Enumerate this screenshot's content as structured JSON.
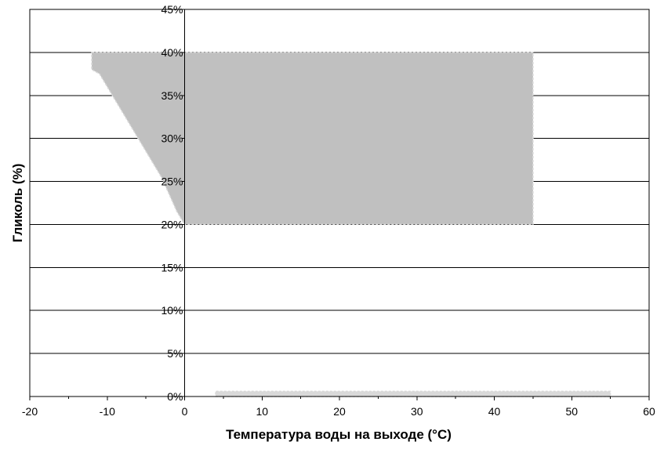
{
  "chart_data": {
    "type": "area",
    "xlabel": "Температура воды на выходе (°C)",
    "ylabel": "Гликоль (%)",
    "xlim": [
      -20,
      60
    ],
    "ylim": [
      0,
      45
    ],
    "x_ticks": [
      -20,
      -10,
      0,
      10,
      20,
      30,
      40,
      50,
      60
    ],
    "x_tick_labels": [
      "-20",
      "-10",
      "0",
      "10",
      "20",
      "30",
      "40",
      "50",
      "60"
    ],
    "y_ticks": [
      0,
      5,
      10,
      15,
      20,
      25,
      30,
      35,
      40,
      45
    ],
    "y_tick_labels": [
      "0%",
      "5%",
      "10%",
      "15%",
      "20%",
      "25%",
      "30%",
      "35%",
      "40%",
      "45%"
    ],
    "grid": "horizontal",
    "legend": "none",
    "series": [
      {
        "x": [
          -12,
          45,
          45,
          0,
          -1,
          -2,
          -3,
          -4,
          -5,
          -6,
          -7,
          -8,
          -9,
          -10,
          -11,
          -12
        ],
        "y": [
          40,
          40,
          20,
          20,
          21.5,
          23.5,
          25.5,
          27,
          28.5,
          30,
          31.5,
          33,
          34.5,
          36,
          37.5,
          38
        ],
        "color": "#c0c0c0"
      },
      {
        "x": [
          4,
          55,
          55,
          4
        ],
        "y": [
          0,
          0,
          0.6,
          0.6
        ],
        "color": "#d9d9d9"
      }
    ],
    "colors": {
      "region_fill": "#c0c0c0",
      "region_edge": "#d9d9d9",
      "band_fill": "#d9d9d9",
      "grid": "#000000",
      "frame": "#000000"
    }
  }
}
